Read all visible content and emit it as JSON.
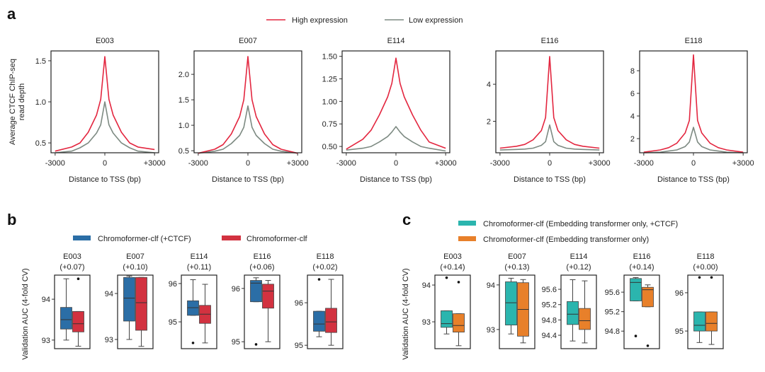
{
  "colors": {
    "high": "#e3263f",
    "low": "#7d8a82",
    "ctcf_blue": "#2b6ea6",
    "clf_red": "#d23240",
    "teal": "#2bb5ae",
    "orange": "#e8802a"
  },
  "chart_data": [
    {
      "panel": "a",
      "type": "line",
      "legend": [
        "High expression",
        "Low expression"
      ],
      "legend_placement": "top-center",
      "xlabel": "Distance to TSS (bp)",
      "ylabel": [
        "Average CTCF ChIP-seq",
        "read depth"
      ],
      "xlim": [
        -3250,
        3250
      ],
      "xticks": [
        -3000,
        0,
        3000
      ],
      "xticklabels": [
        "-3000",
        "0",
        "+3000"
      ],
      "x": [
        -3000,
        -2000,
        -1500,
        -1000,
        -500,
        -250,
        0,
        250,
        500,
        1000,
        1500,
        2000,
        3000
      ],
      "subplots": [
        {
          "title": "E003",
          "ylim": [
            0.38,
            1.62
          ],
          "yticks": [
            0.5,
            1.0,
            1.5
          ],
          "yticklabels": [
            "0.5",
            "1.0",
            "1.5"
          ],
          "series": [
            {
              "name": "High expression",
              "values": [
                0.4,
                0.45,
                0.5,
                0.63,
                0.84,
                1.03,
                1.55,
                1.03,
                0.84,
                0.63,
                0.5,
                0.45,
                0.42
              ]
            },
            {
              "name": "Low expression",
              "values": [
                0.38,
                0.4,
                0.44,
                0.5,
                0.62,
                0.72,
                1.0,
                0.72,
                0.62,
                0.5,
                0.44,
                0.4,
                0.38
              ]
            }
          ]
        },
        {
          "title": "E007",
          "ylim": [
            0.46,
            2.46
          ],
          "yticks": [
            0.5,
            1.0,
            1.5,
            2.0
          ],
          "yticklabels": [
            "0.5",
            "1.0",
            "1.5",
            "2.0"
          ],
          "series": [
            {
              "name": "High expression",
              "values": [
                0.45,
                0.53,
                0.62,
                0.83,
                1.17,
                1.5,
                2.35,
                1.5,
                1.17,
                0.83,
                0.62,
                0.53,
                0.45
              ]
            },
            {
              "name": "Low expression",
              "values": [
                0.45,
                0.49,
                0.53,
                0.64,
                0.8,
                0.96,
                1.38,
                0.96,
                0.8,
                0.64,
                0.53,
                0.49,
                0.45
              ]
            }
          ]
        },
        {
          "title": "E114",
          "ylim": [
            0.43,
            1.56
          ],
          "yticks": [
            0.5,
            0.75,
            1.0,
            1.25,
            1.5
          ],
          "yticklabels": [
            "0.50",
            "0.75",
            "1.00",
            "1.25",
            "1.50"
          ],
          "series": [
            {
              "name": "High expression",
              "values": [
                0.47,
                0.58,
                0.68,
                0.85,
                1.05,
                1.2,
                1.48,
                1.2,
                1.05,
                0.85,
                0.68,
                0.55,
                0.48
              ]
            },
            {
              "name": "Low expression",
              "values": [
                0.46,
                0.48,
                0.5,
                0.55,
                0.61,
                0.66,
                0.72,
                0.66,
                0.61,
                0.55,
                0.5,
                0.48,
                0.45
              ]
            }
          ]
        },
        {
          "title": "E116",
          "ylim": [
            0.3,
            5.8
          ],
          "yticks": [
            2,
            4
          ],
          "yticklabels": [
            "2",
            "4"
          ],
          "series": [
            {
              "name": "High expression",
              "values": [
                0.55,
                0.65,
                0.75,
                1.0,
                1.5,
                2.2,
                5.5,
                2.2,
                1.5,
                1.0,
                0.75,
                0.65,
                0.55
              ]
            },
            {
              "name": "Low expression",
              "values": [
                0.45,
                0.48,
                0.5,
                0.55,
                0.7,
                0.9,
                1.8,
                0.9,
                0.7,
                0.55,
                0.5,
                0.48,
                0.45
              ]
            }
          ]
        },
        {
          "title": "E118",
          "ylim": [
            0.75,
            9.75
          ],
          "yticks": [
            2,
            4,
            6,
            8
          ],
          "yticklabels": [
            "2",
            "4",
            "6",
            "8"
          ],
          "series": [
            {
              "name": "High expression",
              "values": [
                0.8,
                1.0,
                1.2,
                1.6,
                2.5,
                3.6,
                9.4,
                3.6,
                2.5,
                1.6,
                1.2,
                1.0,
                0.8
              ]
            },
            {
              "name": "Low expression",
              "values": [
                0.75,
                0.8,
                0.9,
                1.0,
                1.3,
                1.7,
                3.0,
                1.7,
                1.3,
                1.0,
                0.9,
                0.8,
                0.75
              ]
            }
          ]
        }
      ]
    },
    {
      "panel": "b",
      "type": "box",
      "legend": [
        "Chromoformer-clf (+CTCF)",
        "Chromoformer-clf"
      ],
      "legend_placement": "top",
      "ylabel": "Validation AUC (4-fold CV)",
      "subplots": [
        {
          "title": "E003",
          "delta": "(+0.07)",
          "ylim": [
            92.79,
            94.59
          ],
          "yticks": [
            93,
            94
          ],
          "yticklabels": [
            "93",
            "94"
          ],
          "boxes": [
            {
              "whislo": 93.0,
              "q1": 93.27,
              "med": 93.5,
              "q3": 93.8,
              "whishi": 94.5,
              "fliers": []
            },
            {
              "whislo": 92.85,
              "q1": 93.2,
              "med": 93.4,
              "q3": 93.7,
              "whishi": 93.7,
              "fliers": [
                94.5
              ]
            }
          ]
        },
        {
          "title": "E007",
          "delta": "(+0.10)",
          "ylim": [
            92.8,
            94.4
          ],
          "yticks": [
            93,
            94
          ],
          "yticklabels": [
            "93",
            "94"
          ],
          "boxes": [
            {
              "whislo": 93.0,
              "q1": 93.4,
              "med": 93.9,
              "q3": 94.35,
              "whishi": 94.38,
              "fliers": []
            },
            {
              "whislo": 92.85,
              "q1": 93.2,
              "med": 93.8,
              "q3": 94.35,
              "whishi": 94.35,
              "fliers": []
            }
          ]
        },
        {
          "title": "E114",
          "delta": "(+0.11)",
          "ylim": [
            94.3,
            96.22
          ],
          "yticks": [
            95,
            96
          ],
          "yticklabels": [
            "95",
            "96"
          ],
          "boxes": [
            {
              "whislo": 95.17,
              "q1": 95.17,
              "med": 95.37,
              "q3": 95.55,
              "whishi": 96.1,
              "fliers": [
                94.45
              ]
            },
            {
              "whislo": 94.45,
              "q1": 94.96,
              "med": 95.2,
              "q3": 95.43,
              "whishi": 95.98,
              "fliers": []
            }
          ]
        },
        {
          "title": "E116",
          "delta": "(+0.06)",
          "ylim": [
            94.87,
            96.25
          ],
          "yticks": [
            95,
            96
          ],
          "yticklabels": [
            "95",
            "96"
          ],
          "boxes": [
            {
              "whislo": 95.75,
              "q1": 95.75,
              "med": 96.1,
              "q3": 96.15,
              "whishi": 96.2,
              "fliers": [
                94.95
              ]
            },
            {
              "whislo": 95.0,
              "q1": 95.63,
              "med": 95.95,
              "q3": 96.08,
              "whishi": 96.15,
              "fliers": []
            }
          ]
        },
        {
          "title": "E118",
          "delta": "(+0.02)",
          "ylim": [
            94.92,
            96.65
          ],
          "yticks": [
            95,
            96
          ],
          "yticklabels": [
            "95",
            "96"
          ],
          "boxes": [
            {
              "whislo": 95.2,
              "q1": 95.33,
              "med": 95.5,
              "q3": 95.8,
              "whishi": 95.8,
              "fliers": [
                96.55
              ]
            },
            {
              "whislo": 95.0,
              "q1": 95.3,
              "med": 95.55,
              "q3": 95.87,
              "whishi": 96.55,
              "fliers": []
            }
          ]
        }
      ]
    },
    {
      "panel": "c",
      "type": "box",
      "legend": [
        "Chromoformer-clf (Embedding transformer only, +CTCF)",
        "Chromoformer-clf (Embedding transformer only)"
      ],
      "legend_placement": "top",
      "ylabel": "Validation AUC (4-fold CV)",
      "subplots": [
        {
          "title": "E003",
          "delta": "(+0.14)",
          "ylim": [
            92.27,
            94.27
          ],
          "yticks": [
            93,
            94
          ],
          "yticklabels": [
            "93",
            "94"
          ],
          "boxes": [
            {
              "whislo": 92.67,
              "q1": 92.85,
              "med": 92.95,
              "q3": 93.3,
              "whishi": 93.3,
              "fliers": [
                94.2
              ]
            },
            {
              "whislo": 92.35,
              "q1": 92.72,
              "med": 92.9,
              "q3": 93.22,
              "whishi": 93.22,
              "fliers": [
                94.08
              ]
            }
          ]
        },
        {
          "title": "E007",
          "delta": "(+0.13)",
          "ylim": [
            92.57,
            94.22
          ],
          "yticks": [
            93,
            94
          ],
          "yticklabels": [
            "93",
            "94"
          ],
          "boxes": [
            {
              "whislo": 92.9,
              "q1": 93.1,
              "med": 93.6,
              "q3": 94.07,
              "whishi": 94.15,
              "fliers": []
            },
            {
              "whislo": 92.7,
              "q1": 92.85,
              "med": 93.45,
              "q3": 94.05,
              "whishi": 94.12,
              "fliers": []
            }
          ]
        },
        {
          "title": "E114",
          "delta": "(+0.12)",
          "ylim": [
            94.05,
            95.97
          ],
          "yticks": [
            94.4,
            94.8,
            95.2,
            95.6
          ],
          "yticklabels": [
            "94.4",
            "94.8",
            "95.2",
            "95.6"
          ],
          "boxes": [
            {
              "whislo": 94.25,
              "q1": 94.68,
              "med": 94.95,
              "q3": 95.28,
              "whishi": 95.85,
              "fliers": []
            },
            {
              "whislo": 94.2,
              "q1": 94.55,
              "med": 94.78,
              "q3": 95.1,
              "whishi": 95.82,
              "fliers": []
            }
          ]
        },
        {
          "title": "E116",
          "delta": "(+0.14)",
          "ylim": [
            94.44,
            95.95
          ],
          "yticks": [
            94.8,
            95.2,
            95.6
          ],
          "yticklabels": [
            "94.8",
            "95.2",
            "95.6"
          ],
          "boxes": [
            {
              "whislo": 95.42,
              "q1": 95.42,
              "med": 95.8,
              "q3": 95.88,
              "whishi": 95.9,
              "fliers": [
                94.7
              ]
            },
            {
              "whislo": 95.3,
              "q1": 95.3,
              "med": 95.65,
              "q3": 95.7,
              "whishi": 95.75,
              "fliers": [
                94.5
              ]
            }
          ]
        },
        {
          "title": "E118",
          "delta": "(+0.00)",
          "ylim": [
            94.54,
            96.46
          ],
          "yticks": [
            95,
            96
          ],
          "yticklabels": [
            "95",
            "96"
          ],
          "boxes": [
            {
              "whislo": 94.7,
              "q1": 95.0,
              "med": 95.15,
              "q3": 95.5,
              "whishi": 95.5,
              "fliers": [
                96.4
              ]
            },
            {
              "whislo": 94.65,
              "q1": 95.0,
              "med": 95.2,
              "q3": 95.5,
              "whishi": 95.5,
              "fliers": [
                96.4
              ]
            }
          ]
        }
      ]
    }
  ]
}
